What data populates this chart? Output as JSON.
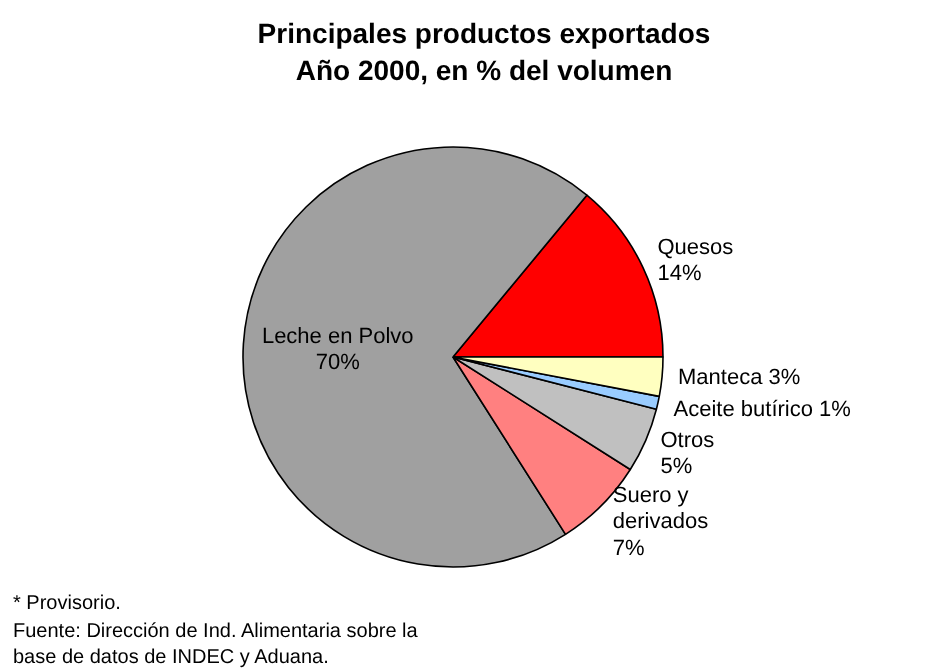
{
  "chart_data": {
    "type": "pie",
    "title": "Principales productos exportados\nAño 2000, en % del volumen",
    "categories": [
      "Quesos",
      "Leche en Polvo",
      "Suero y\nderivados",
      "Otros",
      "Aceite butírico",
      "Manteca"
    ],
    "values": [
      14,
      70,
      7,
      5,
      1,
      3
    ],
    "value_labels": [
      "14%",
      "70%",
      "7%",
      "5%",
      "1%",
      "3%"
    ],
    "colors": [
      "#ff0000",
      "#a0a0a0",
      "#ff8080",
      "#c0c0c0",
      "#99ccff",
      "#ffffc0"
    ],
    "annotations": [
      "* Provisorio.",
      "Fuente: Dirección de Ind. Alimentaria sobre la\nbase de datos de INDEC y Aduana."
    ]
  }
}
